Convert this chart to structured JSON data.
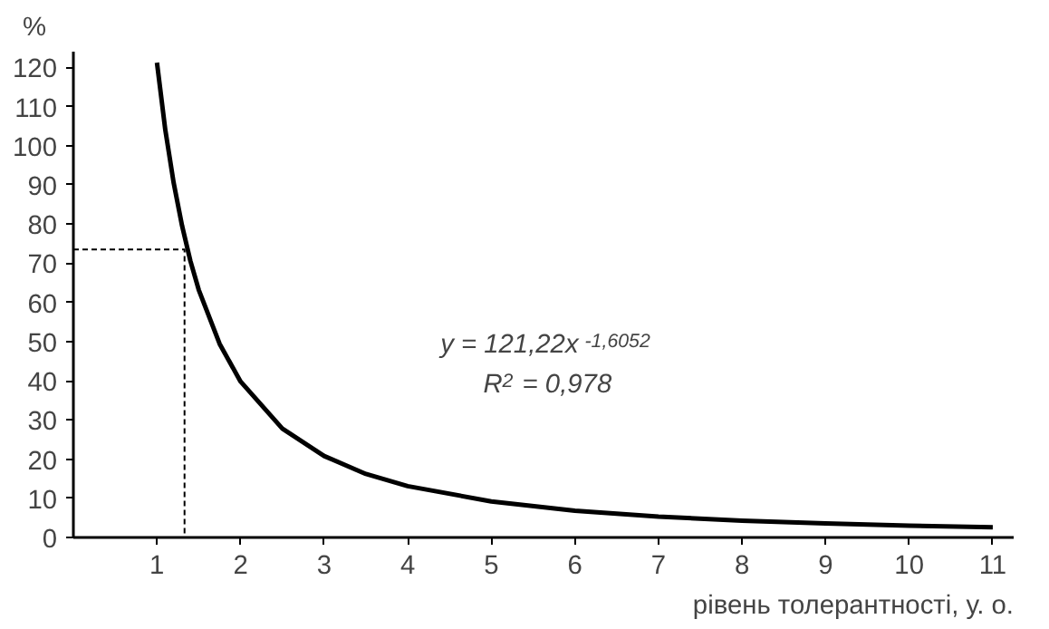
{
  "chart_data": {
    "type": "line",
    "xlabel": "рівень толерантності, у. о.",
    "ylabel": "%",
    "xlim": [
      0,
      11.25
    ],
    "ylim": [
      0,
      124
    ],
    "xticks": [
      1,
      2,
      3,
      4,
      5,
      6,
      7,
      8,
      9,
      10,
      11
    ],
    "yticks": [
      0,
      10,
      20,
      30,
      40,
      50,
      60,
      70,
      80,
      90,
      100,
      110,
      120
    ],
    "grid": false,
    "marker": "none",
    "series": [
      {
        "color": "#000000",
        "line_style": "solid",
        "x": [
          1,
          1.1,
          1.2,
          1.3,
          1.4,
          1.5,
          1.75,
          2,
          2.5,
          3,
          3.5,
          4,
          5,
          6,
          7,
          8,
          9,
          10,
          11
        ],
        "values": [
          121.2,
          104.0,
          90.5,
          79.6,
          70.6,
          63.2,
          49.4,
          39.8,
          27.8,
          20.8,
          16.2,
          13.1,
          9.2,
          6.8,
          5.3,
          4.3,
          3.6,
          3.0,
          2.6
        ]
      },
      {
        "color": "#000000",
        "line_style": "dashed",
        "x": [
          0,
          1.33,
          1.33
        ],
        "values": [
          73.5,
          73.5,
          0
        ]
      }
    ],
    "annotations": [
      "y = 121,22x$^{-1,6052}$",
      "R$^{2}$ = 0,978"
    ]
  }
}
